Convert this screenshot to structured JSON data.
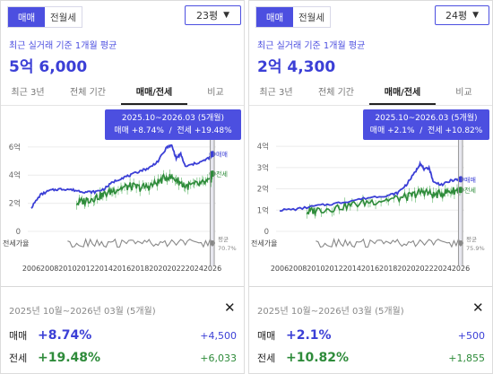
{
  "colors": {
    "accent": "#4c4fe0",
    "sale": "#3b3fd6",
    "jeonse": "#2e8b3a",
    "ratio": "#888888"
  },
  "panels": [
    {
      "tabs": {
        "sale": "매매",
        "rent": "전월세"
      },
      "pyeong": "23평",
      "subtitle": "최근 실거래 기준 1개월 평균",
      "price": "5억 6,000",
      "periods": [
        "최근 3년",
        "전체 기간",
        "매매/전세",
        "비교"
      ],
      "tooltip": {
        "range": "2025.10~2026.03 (5개월)",
        "sale_label": "매매",
        "sale_change": "+8.74%",
        "jeonse_label": "전세",
        "jeonse_change": "+19.48%"
      },
      "summary": {
        "range": "2025년 10월~2026년 03월 (5개월)",
        "sale_label": "매매",
        "sale_pct": "+8.74%",
        "sale_amt": "+4,500",
        "jeonse_label": "전세",
        "jeonse_pct": "+19.48%",
        "jeonse_amt": "+6,033"
      },
      "chart_data": {
        "type": "line",
        "y_ticks": [
          "6억",
          "4억",
          "2억",
          "0"
        ],
        "y_values": [
          6,
          4,
          2,
          0
        ],
        "ylim": [
          0,
          6.5
        ],
        "x_ticks": [
          "2006",
          "2008",
          "2010",
          "2012",
          "2014",
          "2016",
          "2018",
          "2020",
          "2022",
          "2024",
          "2026"
        ],
        "ratio_label": "전세가율",
        "series": [
          {
            "name": "매매",
            "years": [
              2006,
              2007,
              2008,
              2009,
              2010,
              2011,
              2012,
              2013,
              2014,
              2015,
              2016,
              2017,
              2018,
              2019,
              2020,
              2021,
              2021.5,
              2022,
              2022.5,
              2023,
              2024,
              2025,
              2025.8,
              2026
            ],
            "values": [
              1.7,
              2.6,
              2.9,
              3.0,
              3.0,
              2.9,
              2.8,
              2.8,
              3.0,
              3.5,
              3.8,
              4.0,
              4.3,
              4.5,
              5.0,
              6.0,
              6.1,
              5.2,
              5.5,
              4.6,
              4.8,
              5.0,
              5.3,
              5.5
            ]
          },
          {
            "name": "전세",
            "years": [
              2011,
              2012,
              2013,
              2014,
              2015,
              2016,
              2017,
              2018,
              2019,
              2020,
              2021,
              2022,
              2023,
              2024,
              2025,
              2025.8,
              2026
            ],
            "values": [
              2.0,
              2.2,
              2.4,
              2.6,
              2.9,
              3.1,
              3.2,
              3.1,
              3.2,
              3.5,
              3.9,
              3.7,
              3.2,
              3.3,
              3.4,
              3.6,
              4.1
            ]
          },
          {
            "name": "평균",
            "value_label": "70.7%"
          }
        ]
      }
    },
    {
      "tabs": {
        "sale": "매매",
        "rent": "전월세"
      },
      "pyeong": "24평",
      "subtitle": "최근 실거래 기준 1개월 평균",
      "price": "2억 4,300",
      "periods": [
        "최근 3년",
        "전체 기간",
        "매매/전세",
        "비교"
      ],
      "tooltip": {
        "range": "2025.10~2026.03 (5개월)",
        "sale_label": "매매",
        "sale_change": "+2.1%",
        "jeonse_label": "전세",
        "jeonse_change": "+10.82%"
      },
      "summary": {
        "range": "2025년 10월~2026년 03월 (5개월)",
        "sale_label": "매매",
        "sale_pct": "+2.1%",
        "sale_amt": "+500",
        "jeonse_label": "전세",
        "jeonse_pct": "+10.82%",
        "jeonse_amt": "+1,855"
      },
      "chart_data": {
        "type": "line",
        "y_ticks": [
          "4억",
          "3억",
          "2억",
          "1억",
          "0"
        ],
        "y_values": [
          4,
          3,
          2,
          1,
          0
        ],
        "ylim": [
          0,
          4.3
        ],
        "x_ticks": [
          "2006",
          "2008",
          "2010",
          "2012",
          "2014",
          "2016",
          "2018",
          "2020",
          "2022",
          "2024",
          "2026"
        ],
        "ratio_label": "전세가율",
        "series": [
          {
            "name": "매매",
            "years": [
              2006,
              2008,
              2010,
              2012,
              2014,
              2016,
              2018,
              2019,
              2020,
              2021,
              2021.5,
              2022,
              2022.5,
              2023,
              2024,
              2025,
              2026
            ],
            "values": [
              1.0,
              1.05,
              1.2,
              1.3,
              1.45,
              1.6,
              1.7,
              1.8,
              2.2,
              2.8,
              3.2,
              2.9,
              3.0,
              2.3,
              2.2,
              2.4,
              2.45
            ]
          },
          {
            "name": "전세",
            "years": [
              2009,
              2010,
              2012,
              2014,
              2016,
              2018,
              2020,
              2021,
              2022,
              2023,
              2024,
              2025,
              2026
            ],
            "values": [
              0.9,
              1.0,
              1.1,
              1.25,
              1.4,
              1.5,
              1.6,
              1.75,
              1.9,
              1.7,
              1.8,
              1.9,
              1.95
            ]
          },
          {
            "name": "평균",
            "value_label": "75.9%"
          }
        ]
      }
    }
  ]
}
